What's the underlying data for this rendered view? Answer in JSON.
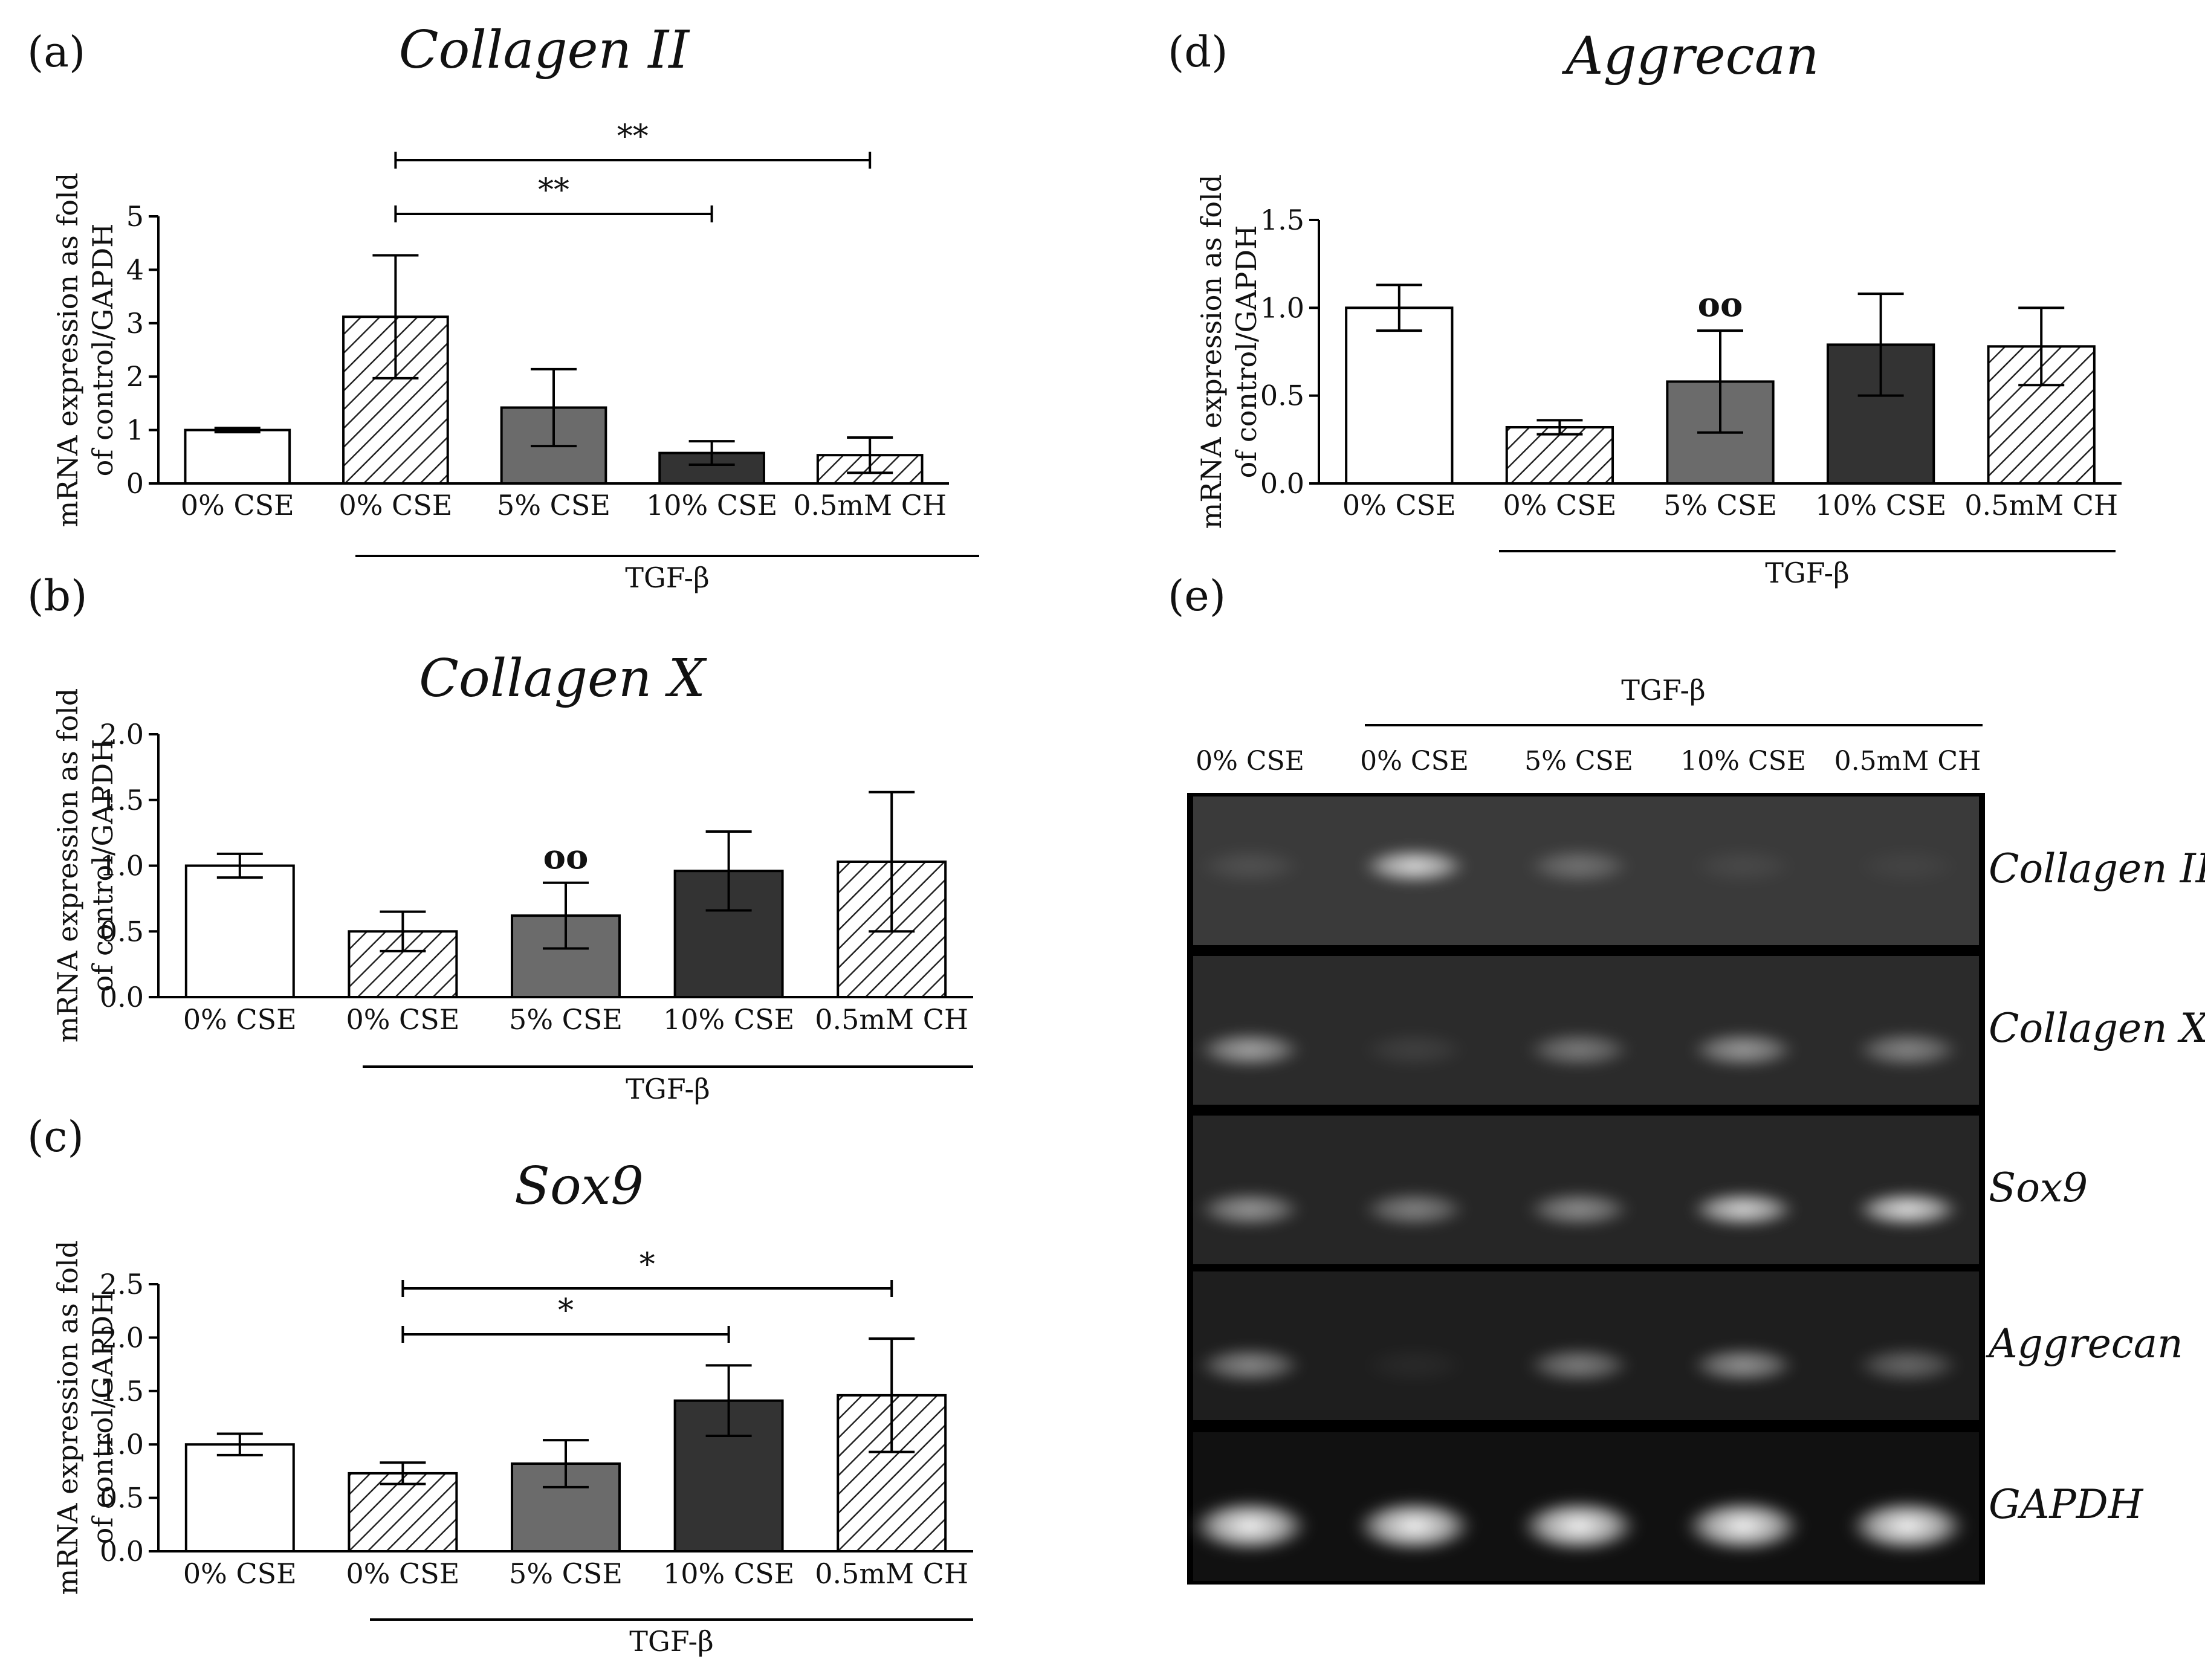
{
  "chart_data": [
    {
      "id": "a",
      "type": "bar",
      "panel_label": "(a)",
      "title": "Collagen II",
      "ylabel_lines": [
        "mRNA expression as fold",
        "of control/GAPDH"
      ],
      "categories": [
        "0% CSE",
        "0% CSE",
        "5% CSE",
        "10% CSE",
        "0.5mM CH"
      ],
      "values": [
        1.0,
        3.12,
        1.42,
        0.57,
        0.53
      ],
      "errors": [
        0.04,
        1.15,
        0.72,
        0.22,
        0.33
      ],
      "fills": [
        "white",
        "hatch",
        "#6b6b6b",
        "#333333",
        "hatch"
      ],
      "ylim": [
        0,
        5
      ],
      "yticks": [
        "0",
        "1",
        "2",
        "3",
        "4",
        "5"
      ],
      "group_label": "TGF-β",
      "group_span": [
        1,
        4
      ],
      "significance": [
        {
          "from": 1,
          "to": 3,
          "label": "**"
        },
        {
          "from": 1,
          "to": 4,
          "label": "**"
        }
      ],
      "markers": []
    },
    {
      "id": "b",
      "type": "bar",
      "panel_label": "(b)",
      "title": "Collagen X",
      "ylabel_lines": [
        "mRNA expression as fold",
        "of control/GAPDH"
      ],
      "categories": [
        "0% CSE",
        "0% CSE",
        "5% CSE",
        "10% CSE",
        "0.5mM CH"
      ],
      "values": [
        1.0,
        0.5,
        0.62,
        0.96,
        1.03
      ],
      "errors": [
        0.09,
        0.15,
        0.25,
        0.3,
        0.53
      ],
      "fills": [
        "white",
        "hatch",
        "#6b6b6b",
        "#333333",
        "hatch"
      ],
      "ylim": [
        0,
        2.0
      ],
      "yticks": [
        "0.0",
        "0.5",
        "1.0",
        "1.5",
        "2.0"
      ],
      "group_label": "TGF-β",
      "group_span": [
        1,
        4
      ],
      "significance": [],
      "markers": [
        {
          "index": 2,
          "label": "oo"
        }
      ]
    },
    {
      "id": "c",
      "type": "bar",
      "panel_label": "(c)",
      "title": "Sox9",
      "ylabel_lines": [
        "mRNA expression as fold",
        "of control/GAPDH"
      ],
      "categories": [
        "0% CSE",
        "0% CSE",
        "5% CSE",
        "10% CSE",
        "0.5mM CH"
      ],
      "values": [
        1.0,
        0.73,
        0.82,
        1.41,
        1.46
      ],
      "errors": [
        0.1,
        0.1,
        0.22,
        0.33,
        0.53
      ],
      "fills": [
        "white",
        "hatch",
        "#6b6b6b",
        "#333333",
        "hatch"
      ],
      "ylim": [
        0,
        2.5
      ],
      "yticks": [
        "0.0",
        "0.5",
        "1.0",
        "1.5",
        "2.0",
        "2.5"
      ],
      "group_label": "TGF-β",
      "group_span": [
        1,
        4
      ],
      "significance": [
        {
          "from": 1,
          "to": 3,
          "label": "*"
        },
        {
          "from": 1,
          "to": 4,
          "label": "*"
        }
      ],
      "markers": []
    },
    {
      "id": "d",
      "type": "bar",
      "panel_label": "(d)",
      "title": "Aggrecan",
      "ylabel_lines": [
        "mRNA expression as fold",
        "of control/GAPDH"
      ],
      "categories": [
        "0% CSE",
        "0% CSE",
        "5% CSE",
        "10% CSE",
        "0.5mM CH"
      ],
      "values": [
        1.0,
        0.32,
        0.58,
        0.79,
        0.78
      ],
      "errors": [
        0.13,
        0.04,
        0.29,
        0.29,
        0.22
      ],
      "fills": [
        "white",
        "hatch",
        "#6b6b6b",
        "#333333",
        "hatch"
      ],
      "ylim": [
        0,
        1.5
      ],
      "yticks": [
        "0.0",
        "0.5",
        "1.0",
        "1.5"
      ],
      "group_label": "TGF-β",
      "group_span": [
        1,
        4
      ],
      "significance": [],
      "markers": [
        {
          "index": 2,
          "label": "oo"
        }
      ]
    }
  ],
  "gel": {
    "panel_label": "(e)",
    "group_label": "TGF-β",
    "lanes": [
      "0% CSE",
      "0% CSE",
      "5% CSE",
      "10% CSE",
      "0.5mM CH"
    ],
    "rows": [
      {
        "label": "Collagen II",
        "intensity": [
          0.12,
          0.85,
          0.3,
          0.08,
          0.05
        ]
      },
      {
        "label": "Collagen X",
        "intensity": [
          0.6,
          0.1,
          0.4,
          0.55,
          0.45
        ]
      },
      {
        "label": "Sox9",
        "intensity": [
          0.55,
          0.45,
          0.5,
          0.85,
          0.9
        ]
      },
      {
        "label": "Aggrecan",
        "intensity": [
          0.5,
          0.05,
          0.45,
          0.55,
          0.35
        ]
      },
      {
        "label": "GAPDH",
        "intensity": [
          1.0,
          1.0,
          1.0,
          1.0,
          1.0
        ]
      }
    ]
  }
}
